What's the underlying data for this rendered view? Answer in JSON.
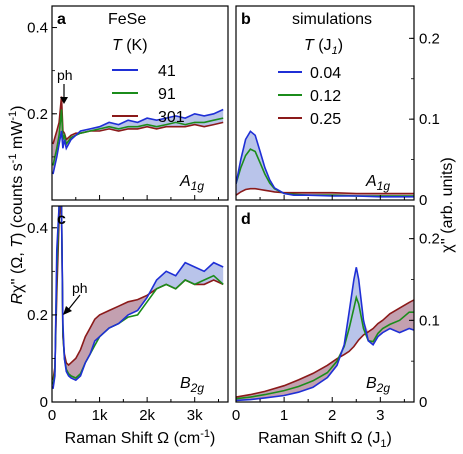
{
  "colors": {
    "T41": "#1f2fd6",
    "T91": "#1b8c1b",
    "T301": "#8b1a1a",
    "fill_blue": "#7f93d8",
    "fill_red": "#c98888"
  },
  "y_left_label_parts": {
    "main": "Rχ'' (Ω,",
    "T": "T",
    "rest": ") (counts s",
    "exp1": "-1",
    "mid": " mW",
    "exp2": "-1",
    "end": ")"
  },
  "y_right_label": "χ'' (arb. units)",
  "x_left_label": "Raman Shift Ω (cm",
  "x_left_label_exp": "-1",
  "x_left_label_end": ")",
  "x_right_label": "Raman Shift Ω (J",
  "x_right_label_sub": "1",
  "x_right_label_end": ")",
  "chart_data": [
    {
      "panel": "a",
      "type": "line",
      "material": "FeSe",
      "legend_title": "T (K)",
      "legend_title_var": "T",
      "legend_title_unit": "(K)",
      "symmetry": "A",
      "symmetry_sub": "1g",
      "annotation": "ph",
      "xlim": [
        0,
        3700
      ],
      "ylim": [
        0,
        0.45
      ],
      "yticks": [
        0.2,
        0.4
      ],
      "ytick_labels": [
        "0.2",
        "0.4"
      ],
      "xticks": [
        0,
        1000,
        2000,
        3000
      ],
      "series": [
        {
          "name": "41",
          "color_key": "T41",
          "x": [
            20,
            100,
            150,
            200,
            230,
            260,
            300,
            400,
            500,
            600,
            800,
            1000,
            1200,
            1400,
            1600,
            1800,
            2000,
            2200,
            2400,
            2600,
            2800,
            3000,
            3200,
            3400,
            3600
          ],
          "y": [
            0.06,
            0.1,
            0.13,
            0.16,
            0.12,
            0.14,
            0.12,
            0.14,
            0.15,
            0.16,
            0.165,
            0.17,
            0.18,
            0.175,
            0.185,
            0.18,
            0.19,
            0.185,
            0.19,
            0.195,
            0.19,
            0.2,
            0.195,
            0.2,
            0.21
          ]
        },
        {
          "name": "91",
          "color_key": "T91",
          "x": [
            20,
            100,
            150,
            200,
            230,
            260,
            300,
            400,
            500,
            600,
            800,
            1000,
            1200,
            1400,
            1600,
            1800,
            2000,
            2200,
            2400,
            2600,
            2800,
            3000,
            3200,
            3400,
            3600
          ],
          "y": [
            0.08,
            0.12,
            0.15,
            0.21,
            0.14,
            0.15,
            0.13,
            0.145,
            0.15,
            0.155,
            0.16,
            0.165,
            0.17,
            0.165,
            0.17,
            0.17,
            0.175,
            0.17,
            0.175,
            0.18,
            0.175,
            0.18,
            0.18,
            0.185,
            0.19
          ]
        },
        {
          "name": "301",
          "color_key": "T301",
          "x": [
            20,
            100,
            150,
            200,
            230,
            260,
            300,
            400,
            500,
            600,
            800,
            1000,
            1200,
            1400,
            1600,
            1800,
            2000,
            2200,
            2400,
            2600,
            2800,
            3000,
            3200,
            3400,
            3600
          ],
          "y": [
            0.13,
            0.16,
            0.18,
            0.24,
            0.16,
            0.155,
            0.14,
            0.15,
            0.155,
            0.155,
            0.16,
            0.16,
            0.165,
            0.16,
            0.165,
            0.165,
            0.17,
            0.165,
            0.17,
            0.17,
            0.17,
            0.175,
            0.17,
            0.175,
            0.18
          ]
        }
      ]
    },
    {
      "panel": "b",
      "type": "line",
      "material": "simulations",
      "legend_title_var": "T",
      "legend_title_unit_open": "(J",
      "legend_title_unit_sub": "1",
      "legend_title_unit_close": ")",
      "symmetry": "A",
      "symmetry_sub": "1g",
      "xlim": [
        0,
        3.7
      ],
      "ylim": [
        0,
        0.24
      ],
      "yticks": [
        0,
        0.1,
        0.2
      ],
      "ytick_labels": [
        "0",
        "0.1",
        "0.2"
      ],
      "series": [
        {
          "name": "0.04",
          "color_key": "T41",
          "x": [
            0,
            0.1,
            0.2,
            0.3,
            0.4,
            0.5,
            0.6,
            0.7,
            0.8,
            1.0,
            1.2,
            1.5,
            2.0,
            2.5,
            3.0,
            3.5,
            3.7
          ],
          "y": [
            0.02,
            0.05,
            0.075,
            0.085,
            0.08,
            0.06,
            0.04,
            0.025,
            0.015,
            0.008,
            0.006,
            0.006,
            0.005,
            0.005,
            0.004,
            0.004,
            0.004
          ]
        },
        {
          "name": "0.12",
          "color_key": "T91",
          "x": [
            0,
            0.1,
            0.2,
            0.3,
            0.4,
            0.5,
            0.6,
            0.7,
            0.8,
            1.0,
            1.2,
            1.5,
            2.0,
            2.5,
            3.0,
            3.5,
            3.7
          ],
          "y": [
            0.02,
            0.04,
            0.055,
            0.063,
            0.06,
            0.046,
            0.032,
            0.021,
            0.014,
            0.008,
            0.007,
            0.006,
            0.006,
            0.005,
            0.005,
            0.005,
            0.005
          ]
        },
        {
          "name": "0.25",
          "color_key": "T301",
          "x": [
            0,
            0.1,
            0.2,
            0.3,
            0.4,
            0.5,
            0.6,
            0.7,
            0.8,
            1.0,
            1.2,
            1.5,
            2.0,
            2.5,
            3.0,
            3.5,
            3.7
          ],
          "y": [
            0.006,
            0.01,
            0.013,
            0.014,
            0.014,
            0.013,
            0.012,
            0.011,
            0.01,
            0.009,
            0.009,
            0.009,
            0.009,
            0.008,
            0.008,
            0.008,
            0.008
          ]
        }
      ]
    },
    {
      "panel": "c",
      "type": "line",
      "symmetry": "B",
      "symmetry_sub": "2g",
      "annotation": "ph",
      "xlim": [
        0,
        3700
      ],
      "ylim": [
        0,
        0.45
      ],
      "yticks": [
        0,
        0.2,
        0.4
      ],
      "ytick_labels": [
        "0",
        "0.2",
        "0.4"
      ],
      "xticks": [
        0,
        1000,
        2000,
        3000
      ],
      "xtick_labels": [
        "0",
        "1k",
        "2k",
        "3k"
      ],
      "series": [
        {
          "name": "41",
          "color_key": "T41",
          "x": [
            20,
            60,
            100,
            150,
            180,
            200,
            230,
            260,
            300,
            350,
            400,
            500,
            600,
            700,
            800,
            900,
            1000,
            1200,
            1400,
            1600,
            1800,
            2000,
            2200,
            2400,
            2600,
            2800,
            3000,
            3200,
            3400,
            3600
          ],
          "y": [
            0.03,
            0.06,
            0.35,
            0.45,
            0.45,
            0.45,
            0.18,
            0.1,
            0.07,
            0.06,
            0.055,
            0.05,
            0.06,
            0.09,
            0.11,
            0.14,
            0.15,
            0.17,
            0.18,
            0.2,
            0.21,
            0.24,
            0.28,
            0.3,
            0.29,
            0.32,
            0.31,
            0.3,
            0.32,
            0.31
          ]
        },
        {
          "name": "91",
          "color_key": "T91",
          "x": [
            20,
            60,
            100,
            150,
            180,
            200,
            230,
            260,
            300,
            350,
            400,
            500,
            600,
            700,
            800,
            900,
            1000,
            1200,
            1400,
            1600,
            1800,
            2000,
            2200,
            2400,
            2600,
            2800,
            3000,
            3200,
            3400,
            3600
          ],
          "y": [
            0.04,
            0.07,
            0.3,
            0.45,
            0.45,
            0.45,
            0.16,
            0.1,
            0.075,
            0.065,
            0.06,
            0.055,
            0.065,
            0.09,
            0.11,
            0.13,
            0.15,
            0.17,
            0.18,
            0.195,
            0.2,
            0.23,
            0.26,
            0.27,
            0.26,
            0.28,
            0.27,
            0.28,
            0.29,
            0.27
          ]
        },
        {
          "name": "301",
          "color_key": "T301",
          "x": [
            20,
            60,
            100,
            150,
            180,
            200,
            230,
            260,
            300,
            350,
            400,
            500,
            600,
            700,
            800,
            900,
            1000,
            1200,
            1400,
            1600,
            1800,
            2000,
            2200,
            2400,
            2600,
            2800,
            3000,
            3200,
            3400,
            3600
          ],
          "y": [
            0.05,
            0.08,
            0.25,
            0.42,
            0.45,
            0.45,
            0.15,
            0.11,
            0.09,
            0.085,
            0.09,
            0.1,
            0.12,
            0.15,
            0.17,
            0.19,
            0.2,
            0.21,
            0.22,
            0.23,
            0.235,
            0.245,
            0.26,
            0.27,
            0.26,
            0.28,
            0.27,
            0.27,
            0.28,
            0.27
          ]
        }
      ]
    },
    {
      "panel": "d",
      "type": "line",
      "symmetry": "B",
      "symmetry_sub": "2g",
      "xlim": [
        0,
        3.7
      ],
      "ylim": [
        0,
        0.24
      ],
      "yticks": [
        0,
        0.1,
        0.2
      ],
      "ytick_labels": [
        "0",
        "0.1",
        "0.2"
      ],
      "xticks": [
        0,
        1,
        2,
        3
      ],
      "xtick_labels": [
        "0",
        "1",
        "2",
        "3"
      ],
      "series": [
        {
          "name": "0.04",
          "color_key": "T41",
          "x": [
            0,
            0.3,
            0.6,
            1.0,
            1.3,
            1.6,
            1.9,
            2.1,
            2.25,
            2.35,
            2.45,
            2.5,
            2.55,
            2.65,
            2.75,
            2.85,
            2.95,
            3.05,
            3.2,
            3.4,
            3.6,
            3.7
          ],
          "y": [
            0.002,
            0.003,
            0.005,
            0.008,
            0.012,
            0.018,
            0.03,
            0.045,
            0.07,
            0.11,
            0.15,
            0.165,
            0.15,
            0.1,
            0.075,
            0.07,
            0.08,
            0.085,
            0.09,
            0.085,
            0.09,
            0.088
          ]
        },
        {
          "name": "0.12",
          "color_key": "T91",
          "x": [
            0,
            0.3,
            0.6,
            1.0,
            1.3,
            1.6,
            1.9,
            2.1,
            2.25,
            2.35,
            2.45,
            2.5,
            2.55,
            2.65,
            2.75,
            2.85,
            2.95,
            3.05,
            3.2,
            3.4,
            3.6,
            3.7
          ],
          "y": [
            0.004,
            0.006,
            0.009,
            0.014,
            0.019,
            0.026,
            0.036,
            0.05,
            0.068,
            0.09,
            0.115,
            0.128,
            0.12,
            0.09,
            0.075,
            0.074,
            0.084,
            0.09,
            0.095,
            0.1,
            0.11,
            0.11
          ]
        },
        {
          "name": "0.25",
          "color_key": "T301",
          "x": [
            0,
            0.3,
            0.6,
            1.0,
            1.3,
            1.6,
            1.9,
            2.1,
            2.25,
            2.35,
            2.45,
            2.5,
            2.55,
            2.65,
            2.75,
            2.85,
            2.95,
            3.05,
            3.2,
            3.4,
            3.6,
            3.7
          ],
          "y": [
            0.006,
            0.009,
            0.013,
            0.02,
            0.027,
            0.035,
            0.045,
            0.053,
            0.058,
            0.062,
            0.068,
            0.072,
            0.076,
            0.082,
            0.086,
            0.09,
            0.096,
            0.1,
            0.108,
            0.115,
            0.122,
            0.125
          ]
        }
      ]
    }
  ]
}
